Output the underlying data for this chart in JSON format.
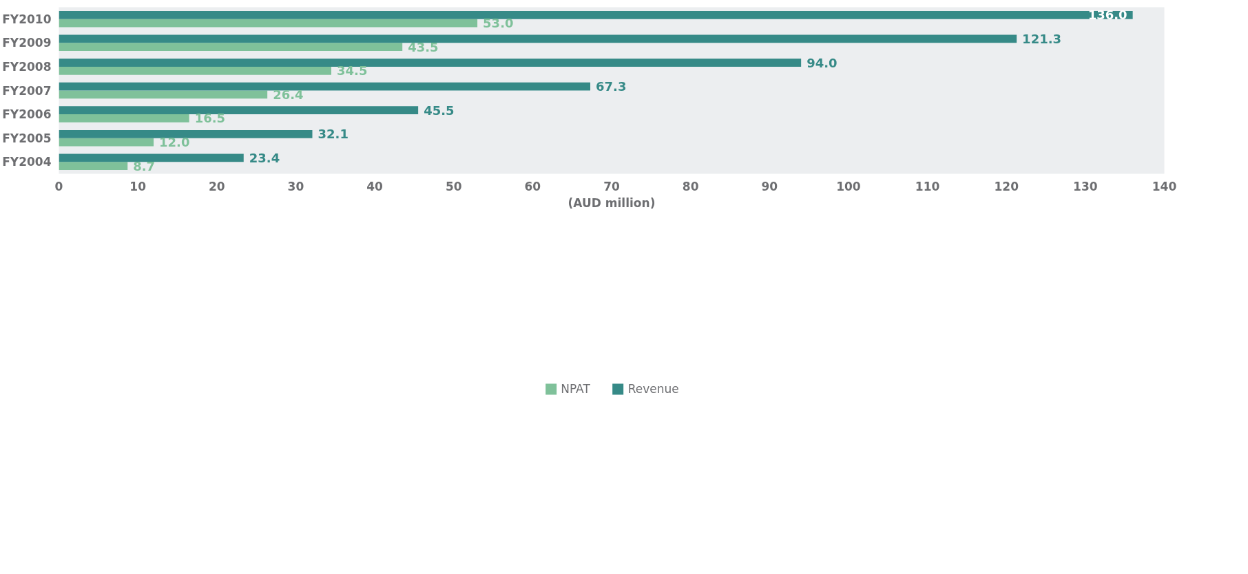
{
  "chart_data": {
    "type": "bar",
    "orientation": "horizontal",
    "xlabel": "(AUD million)",
    "categories": [
      "FY2010",
      "FY2009",
      "FY2008",
      "FY2007",
      "FY2006",
      "FY2005",
      "FY2004"
    ],
    "series": [
      {
        "name": "NPAT",
        "color": "#7fc19a",
        "values": [
          53.0,
          43.5,
          34.5,
          26.4,
          16.5,
          12.0,
          8.7
        ],
        "value_labels": [
          "53.0",
          "43.5",
          "34.5",
          "26.4",
          "16.5",
          "12.0",
          "8.7"
        ]
      },
      {
        "name": "Revenue",
        "color": "#368a87",
        "values": [
          136.0,
          121.3,
          94.0,
          67.3,
          45.5,
          32.1,
          23.4
        ],
        "value_labels": [
          "136.0",
          "121.3",
          "94.0",
          "67.3",
          "45.5",
          "32.1",
          "23.4"
        ]
      }
    ],
    "xlim": [
      0,
      140
    ],
    "xticks": [
      0,
      10,
      20,
      30,
      40,
      50,
      60,
      70,
      80,
      90,
      100,
      110,
      120,
      130,
      140
    ],
    "legend": "bottom",
    "grid": false
  }
}
